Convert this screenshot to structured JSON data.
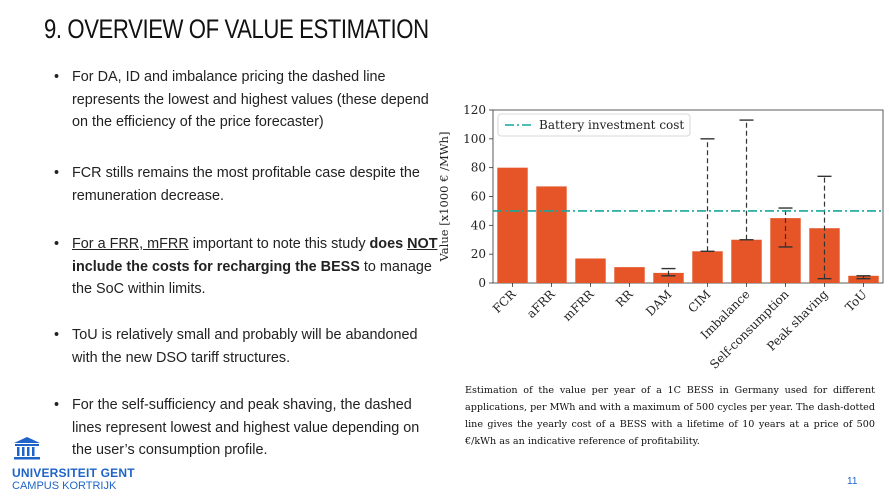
{
  "slide": {
    "title": "9. OVERVIEW OF VALUE ESTIMATION",
    "page_number": "11"
  },
  "bullets": {
    "b1": "For DA, ID and imbalance pricing the dashed line represents the lowest and highest values (these depend on the efficiency of the price forecaster)",
    "b2": "FCR stills remains the most profitable case despite the remuneration decrease.",
    "b3": {
      "underlined": "For a FRR, mFRR",
      "plain1": " important to note this study ",
      "bold1": "does ",
      "bold_underlined": "NOT",
      "bold2": " include the costs for recharging the BESS",
      "plain2": " to manage the SoC within limits."
    },
    "b4": "ToU is relatively small and probably will be abandoned with the new DSO tariff structures.",
    "b5": "For the self-sufficiency and peak shaving, the dashed lines represent lowest and highest value depending on the user’s consumption profile."
  },
  "caption": "Estimation of the value per year of a 1C BESS in Germany used for different applications, per MWh and with a maximum of 500 cycles per year. The dash-dotted line gives the yearly cost of a BESS with a lifetime of 10 years at a price of 500 €/kWh as an indicative reference of  profitability.",
  "logo": {
    "line1": "UNIVERSITEIT GENT",
    "line2": "CAMPUS KORTRIJK"
  },
  "colors": {
    "bar": "#e55527",
    "reference_line": "#17a89b",
    "brand": "#1e64c8"
  },
  "chart_data": {
    "type": "bar",
    "ylabel": "Value [x1000 € /MWh]",
    "ylim": [
      0,
      120
    ],
    "yticks": [
      0,
      20,
      40,
      60,
      80,
      100,
      120
    ],
    "grid": false,
    "legend_position": "top-left",
    "categories": [
      "FCR",
      "aFRR",
      "mFRR",
      "RR",
      "DAM",
      "CIM",
      "Imbalance",
      "Self-consumption",
      "Peak shaving",
      "ToU"
    ],
    "values": [
      80,
      67,
      17,
      11,
      7,
      22,
      30,
      45,
      38,
      5
    ],
    "ranges": [
      null,
      null,
      null,
      null,
      [
        5,
        10
      ],
      [
        22,
        100
      ],
      [
        30,
        113
      ],
      [
        25,
        52
      ],
      [
        3,
        74
      ],
      [
        3,
        5
      ]
    ],
    "reference_line": {
      "label": "Battery investment cost",
      "value": 50
    }
  }
}
